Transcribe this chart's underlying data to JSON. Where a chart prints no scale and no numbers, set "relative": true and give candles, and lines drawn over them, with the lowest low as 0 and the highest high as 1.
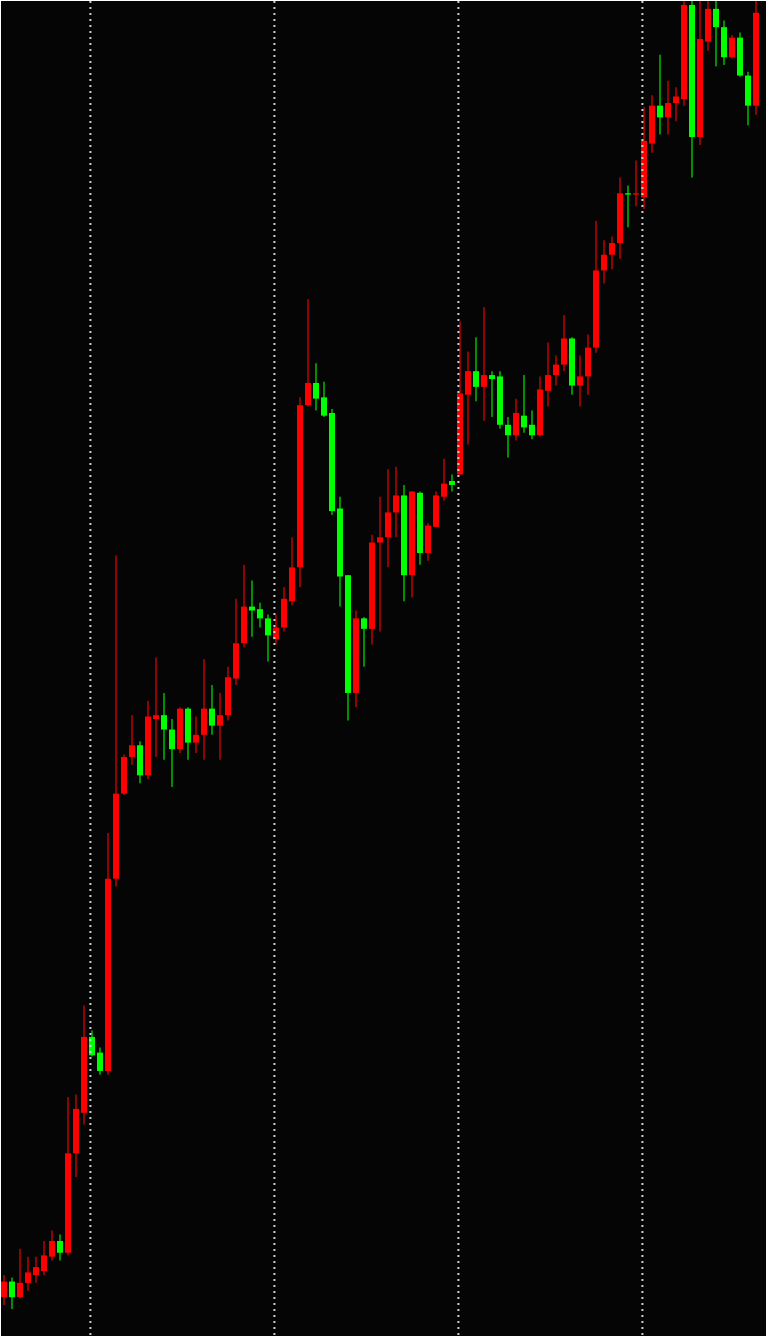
{
  "chart_data": {
    "type": "candlestick",
    "relative": true,
    "categories": [
      null,
      null,
      null,
      null,
      null,
      null,
      null,
      null,
      null,
      null,
      null,
      null,
      null,
      null,
      null,
      null,
      null,
      null,
      null,
      null,
      null,
      null,
      null,
      null,
      null,
      null,
      null,
      null,
      null,
      null,
      null,
      null,
      null,
      null,
      null,
      null,
      null,
      null,
      null,
      null,
      null,
      null,
      null,
      null,
      null,
      null,
      null,
      null,
      null,
      null,
      null,
      null,
      null,
      null,
      null,
      null,
      null,
      null,
      null,
      null,
      null,
      null,
      null,
      null,
      null,
      null,
      null,
      null,
      null,
      null,
      null,
      null,
      null,
      null,
      null,
      null,
      null,
      null,
      null,
      null,
      null,
      null,
      null,
      null,
      null,
      null,
      null,
      null,
      null,
      null,
      null,
      null,
      null,
      null,
      null
    ],
    "ohlc": [
      [
        0.009,
        0.026,
        0.003,
        0.021
      ],
      [
        0.021,
        0.024,
        0.0,
        0.009
      ],
      [
        0.009,
        0.046,
        0.008,
        0.02
      ],
      [
        0.02,
        0.04,
        0.014,
        0.028
      ],
      [
        0.026,
        0.04,
        0.02,
        0.032
      ],
      [
        0.029,
        0.052,
        0.026,
        0.041
      ],
      [
        0.04,
        0.06,
        0.037,
        0.052
      ],
      [
        0.052,
        0.057,
        0.037,
        0.043
      ],
      [
        0.043,
        0.162,
        0.041,
        0.119
      ],
      [
        0.119,
        0.164,
        0.101,
        0.153
      ],
      [
        0.15,
        0.232,
        0.141,
        0.208
      ],
      [
        0.208,
        0.213,
        0.193,
        0.194
      ],
      [
        0.196,
        0.2,
        0.179,
        0.182
      ],
      [
        0.182,
        0.364,
        0.179,
        0.329
      ],
      [
        0.329,
        0.576,
        0.323,
        0.394
      ],
      [
        0.394,
        0.424,
        0.393,
        0.422
      ],
      [
        0.422,
        0.454,
        0.416,
        0.431
      ],
      [
        0.431,
        0.434,
        0.402,
        0.408
      ],
      [
        0.408,
        0.465,
        0.405,
        0.453
      ],
      [
        0.451,
        0.498,
        0.422,
        0.454
      ],
      [
        0.454,
        0.471,
        0.42,
        0.443
      ],
      [
        0.443,
        0.451,
        0.399,
        0.428
      ],
      [
        0.428,
        0.46,
        0.425,
        0.459
      ],
      [
        0.459,
        0.46,
        0.42,
        0.433
      ],
      [
        0.433,
        0.453,
        0.425,
        0.439
      ],
      [
        0.439,
        0.497,
        0.42,
        0.459
      ],
      [
        0.459,
        0.477,
        0.439,
        0.446
      ],
      [
        0.446,
        0.471,
        0.42,
        0.454
      ],
      [
        0.454,
        0.491,
        0.45,
        0.483
      ],
      [
        0.482,
        0.543,
        0.477,
        0.509
      ],
      [
        0.509,
        0.569,
        0.506,
        0.537
      ],
      [
        0.537,
        0.557,
        0.514,
        0.534
      ],
      [
        0.535,
        0.54,
        0.521,
        0.528
      ],
      [
        0.528,
        0.531,
        0.495,
        0.515
      ],
      [
        0.512,
        0.531,
        0.508,
        0.521
      ],
      [
        0.521,
        0.552,
        0.518,
        0.543
      ],
      [
        0.541,
        0.59,
        0.538,
        0.567
      ],
      [
        0.567,
        0.697,
        0.552,
        0.691
      ],
      [
        0.691,
        0.772,
        0.69,
        0.708
      ],
      [
        0.708,
        0.723,
        0.687,
        0.696
      ],
      [
        0.697,
        0.709,
        0.682,
        0.683
      ],
      [
        0.685,
        0.688,
        0.607,
        0.61
      ],
      [
        0.612,
        0.621,
        0.537,
        0.56
      ],
      [
        0.561,
        0.561,
        0.45,
        0.471
      ],
      [
        0.471,
        0.534,
        0.46,
        0.528
      ],
      [
        0.528,
        0.529,
        0.491,
        0.52
      ],
      [
        0.52,
        0.592,
        0.508,
        0.586
      ],
      [
        0.586,
        0.621,
        0.518,
        0.59
      ],
      [
        0.59,
        0.642,
        0.567,
        0.609
      ],
      [
        0.609,
        0.644,
        0.59,
        0.622
      ],
      [
        0.622,
        0.63,
        0.541,
        0.561
      ],
      [
        0.561,
        0.625,
        0.544,
        0.625
      ],
      [
        0.624,
        0.625,
        0.569,
        0.578
      ],
      [
        0.578,
        0.601,
        0.572,
        0.599
      ],
      [
        0.598,
        0.625,
        0.598,
        0.622
      ],
      [
        0.621,
        0.65,
        0.618,
        0.631
      ],
      [
        0.633,
        0.638,
        0.625,
        0.63
      ],
      [
        0.638,
        0.755,
        0.638,
        0.7
      ],
      [
        0.699,
        0.732,
        0.661,
        0.717
      ],
      [
        0.717,
        0.743,
        0.694,
        0.705
      ],
      [
        0.705,
        0.766,
        0.679,
        0.714
      ],
      [
        0.714,
        0.717,
        0.682,
        0.711
      ],
      [
        0.713,
        0.717,
        0.673,
        0.676
      ],
      [
        0.676,
        0.682,
        0.651,
        0.668
      ],
      [
        0.668,
        0.696,
        0.664,
        0.685
      ],
      [
        0.683,
        0.714,
        0.67,
        0.674
      ],
      [
        0.676,
        0.687,
        0.665,
        0.668
      ],
      [
        0.668,
        0.713,
        0.667,
        0.703
      ],
      [
        0.702,
        0.739,
        0.69,
        0.714
      ],
      [
        0.714,
        0.729,
        0.706,
        0.722
      ],
      [
        0.722,
        0.76,
        0.717,
        0.742
      ],
      [
        0.742,
        0.743,
        0.699,
        0.706
      ],
      [
        0.706,
        0.729,
        0.69,
        0.713
      ],
      [
        0.713,
        0.745,
        0.699,
        0.735
      ],
      [
        0.735,
        0.832,
        0.731,
        0.794
      ],
      [
        0.794,
        0.817,
        0.784,
        0.806
      ],
      [
        0.806,
        0.82,
        0.795,
        0.815
      ],
      [
        0.815,
        0.865,
        0.803,
        0.853
      ],
      [
        0.853,
        0.859,
        0.827,
        0.852
      ],
      [
        0.852,
        0.878,
        0.843,
        0.853
      ],
      [
        0.85,
        0.919,
        0.841,
        0.893
      ],
      [
        0.891,
        0.928,
        0.884,
        0.92
      ],
      [
        0.92,
        0.959,
        0.898,
        0.911
      ],
      [
        0.911,
        0.939,
        0.898,
        0.922
      ],
      [
        0.922,
        0.934,
        0.908,
        0.927
      ],
      [
        0.925,
        1.0,
        0.92,
        0.997
      ],
      [
        0.997,
        1.0,
        0.865,
        0.896
      ],
      [
        0.896,
        1.0,
        0.89,
        0.971
      ],
      [
        0.969,
        1.0,
        0.962,
        0.994
      ],
      [
        0.994,
        1.0,
        0.95,
        0.98
      ],
      [
        0.98,
        0.985,
        0.951,
        0.957
      ],
      [
        0.957,
        0.974,
        0.956,
        0.972
      ],
      [
        0.972,
        0.976,
        0.942,
        0.943
      ],
      [
        0.943,
        0.946,
        0.905,
        0.92
      ],
      [
        0.92,
        1.0,
        0.913,
        0.991
      ]
    ],
    "colors": [
      "#ff0000",
      "#00ff00",
      "#ff0000",
      "#ff0000",
      "#ff0000",
      "#ff0000",
      "#ff0000",
      "#00ff00",
      "#ff0000",
      "#ff0000",
      "#ff0000",
      "#00ff00",
      "#00ff00",
      "#ff0000",
      "#ff0000",
      "#ff0000",
      "#ff0000",
      "#00ff00",
      "#ff0000",
      "#ff0000",
      "#00ff00",
      "#00ff00",
      "#ff0000",
      "#00ff00",
      "#ff0000",
      "#ff0000",
      "#00ff00",
      "#ff0000",
      "#ff0000",
      "#ff0000",
      "#ff0000",
      "#00ff00",
      "#00ff00",
      "#00ff00",
      "#ff0000",
      "#ff0000",
      "#ff0000",
      "#ff0000",
      "#ff0000",
      "#00ff00",
      "#00ff00",
      "#00ff00",
      "#00ff00",
      "#00ff00",
      "#ff0000",
      "#00ff00",
      "#ff0000",
      "#ff0000",
      "#ff0000",
      "#ff0000",
      "#00ff00",
      "#ff0000",
      "#00ff00",
      "#ff0000",
      "#ff0000",
      "#ff0000",
      "#00ff00",
      "#ff0000",
      "#ff0000",
      "#00ff00",
      "#ff0000",
      "#00ff00",
      "#00ff00",
      "#00ff00",
      "#ff0000",
      "#00ff00",
      "#00ff00",
      "#ff0000",
      "#ff0000",
      "#ff0000",
      "#ff0000",
      "#00ff00",
      "#ff0000",
      "#ff0000",
      "#ff0000",
      "#ff0000",
      "#ff0000",
      "#ff0000",
      "#00ff00",
      "#ff0000",
      "#ff0000",
      "#ff0000",
      "#00ff00",
      "#ff0000",
      "#ff0000",
      "#ff0000",
      "#00ff00",
      "#ff0000",
      "#ff0000",
      "#00ff00",
      "#00ff00",
      "#ff0000",
      "#00ff00",
      "#00ff00",
      "#ff0000"
    ],
    "grid": "x"
  }
}
